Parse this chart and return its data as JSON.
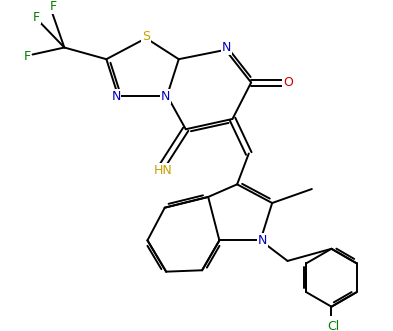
{
  "bg_color": "#ffffff",
  "bond_color": "#000000",
  "atom_colors": {
    "S": "#c8a000",
    "N": "#0000bb",
    "O": "#cc0000",
    "F": "#008000",
    "Cl": "#008000",
    "HN": "#c8a000",
    "C": "#000000"
  },
  "lw": 1.4,
  "figsize": [
    3.93,
    3.31
  ],
  "dpi": 100
}
